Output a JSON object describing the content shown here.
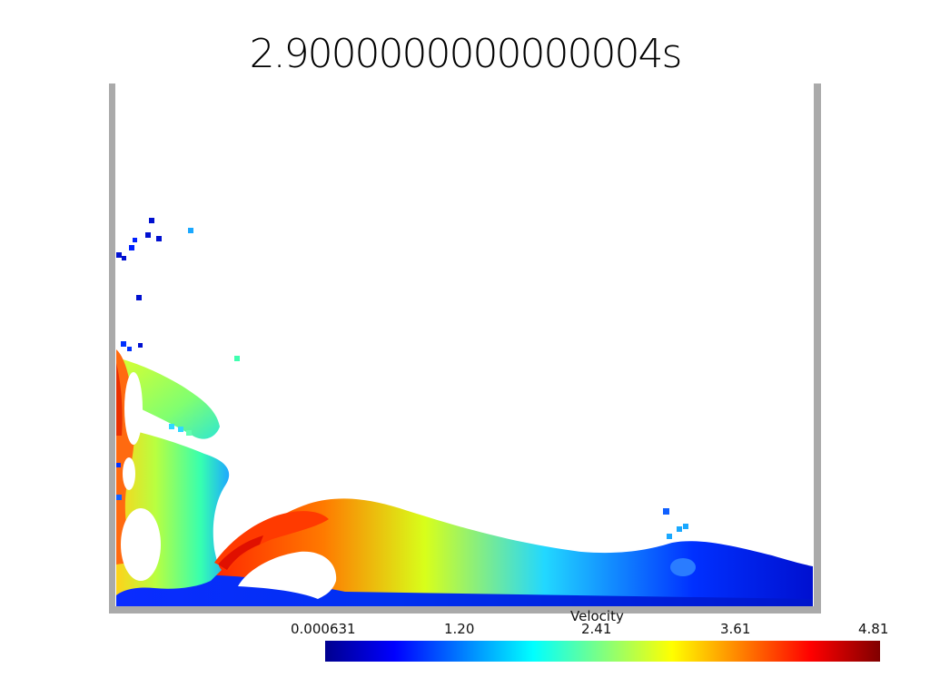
{
  "title": "2.9000000000000004s",
  "colorbar": {
    "name": "Velocity",
    "ticks": [
      "0.000631",
      "1.20",
      "2.41",
      "3.61",
      "4.81"
    ],
    "min": 0.000631,
    "max": 4.81,
    "colormap": [
      "#00008f",
      "#0000ff",
      "#0080ff",
      "#00ffff",
      "#80ff80",
      "#ffff00",
      "#ff8000",
      "#ff0000",
      "#800000"
    ]
  },
  "container_color": "#aaaaaa"
}
